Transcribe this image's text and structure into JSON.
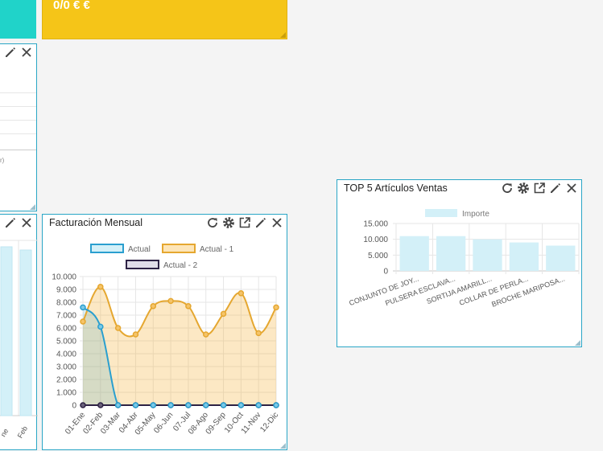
{
  "kpi_tile": {
    "value": "0/0 € €",
    "color": "#f5c518"
  },
  "teal_tile": {
    "color": "#20d3c9"
  },
  "left_table_widget": {
    "note": "r)"
  },
  "left_chart_widget": {
    "x_labels": [
      "ne",
      "Feb"
    ]
  },
  "facturacion": {
    "title": "Facturación Mensual",
    "legend": [
      "Actual",
      "Actual - 1",
      "Actual - 2"
    ],
    "legend_colors": [
      "#2a9fcf",
      "#e5a730",
      "#2d2244"
    ]
  },
  "top5": {
    "title": "TOP 5 Artículos Ventas",
    "legend": [
      "Importe"
    ],
    "bar_color": "#d3f0f8"
  },
  "icons": [
    "refresh-icon",
    "gear-icon",
    "external-link-icon",
    "pencil-icon",
    "close-icon"
  ],
  "chart_data": [
    {
      "type": "line",
      "title": "Facturación Mensual",
      "categories": [
        "01-Ene",
        "02-Feb",
        "03-Mar",
        "04-Abr",
        "05-May",
        "06-Jun",
        "07-Jul",
        "08-Ago",
        "09-Sep",
        "10-Oct",
        "11-Nov",
        "12-Dic"
      ],
      "series": [
        {
          "name": "Actual",
          "values": [
            7600,
            6100,
            0,
            0,
            0,
            0,
            0,
            0,
            0,
            0,
            0,
            0
          ]
        },
        {
          "name": "Actual - 1",
          "values": [
            6500,
            9200,
            6000,
            5500,
            7700,
            8100,
            7700,
            5500,
            7100,
            8700,
            5600,
            7600
          ]
        },
        {
          "name": "Actual - 2",
          "values": [
            0,
            0,
            0,
            0,
            0,
            0,
            0,
            0,
            0,
            0,
            0,
            0
          ]
        }
      ],
      "y_ticks": [
        "0",
        "1.000",
        "2.000",
        "3.000",
        "4.000",
        "5.000",
        "6.000",
        "7.000",
        "8.000",
        "9.000",
        "10.000"
      ],
      "ylim": [
        0,
        10000
      ],
      "grid": true,
      "legend_position": "top"
    },
    {
      "type": "bar",
      "title": "TOP 5 Artículos Ventas",
      "categories": [
        "CONJUNTO DE JOY...",
        "PULSERA ESCLAVA...",
        "SORTIJA AMARILL...",
        "COLLAR DE PERLA...",
        "BROCHE MARIPOSA..."
      ],
      "series": [
        {
          "name": "Importe",
          "values": [
            11000,
            11000,
            10000,
            9000,
            8000
          ]
        }
      ],
      "y_ticks": [
        "0",
        "5.000",
        "10.000",
        "15.000"
      ],
      "ylim": [
        0,
        15000
      ],
      "grid": true,
      "legend_position": "top"
    }
  ]
}
